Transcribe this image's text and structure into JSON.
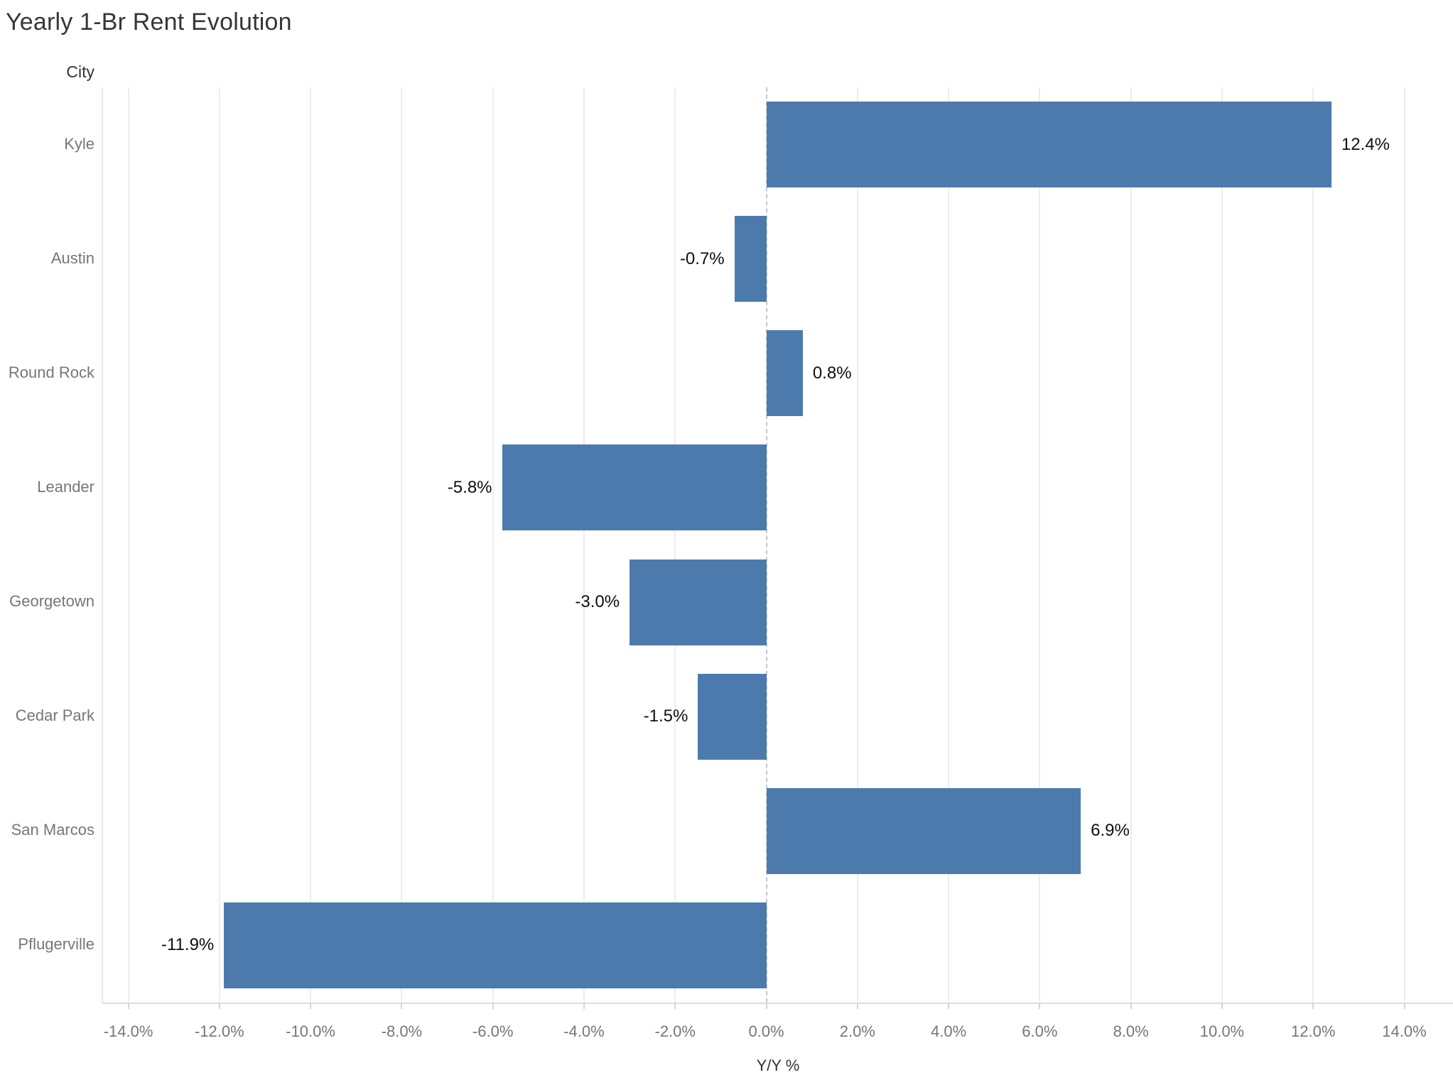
{
  "title": "Yearly 1-Br Rent Evolution",
  "row_header": "City",
  "colors": {
    "bar": "#4d7aac",
    "gridline": "#ededed",
    "zero_line": "#c6c6c6",
    "axis_line": "#dddddd",
    "tick_text": "#767676",
    "city_text": "#767676",
    "value_text": "#0f0f0f",
    "title_text": "#363636"
  },
  "chart_data": {
    "type": "bar",
    "orientation": "horizontal",
    "title": "Yearly 1-Br Rent Evolution",
    "xlabel": "Y/Y %",
    "ylabel": "City",
    "categories": [
      "Kyle",
      "Austin",
      "Round Rock",
      "Leander",
      "Georgetown",
      "Cedar Park",
      "San Marcos",
      "Pflugerville"
    ],
    "values": [
      12.4,
      -0.7,
      0.8,
      -5.8,
      -3.0,
      -1.5,
      6.9,
      -11.9
    ],
    "value_labels": [
      "12.4%",
      "-0.7%",
      "0.8%",
      "-5.8%",
      "-3.0%",
      "-1.5%",
      "6.9%",
      "-11.9%"
    ],
    "xlim": [
      -14.57,
      14.99
    ],
    "xticks": [
      -14,
      -12,
      -10,
      -8,
      -6,
      -4,
      -2,
      0,
      2,
      4,
      6,
      8,
      10,
      12,
      14
    ],
    "xtick_labels": [
      "-14.0%",
      "-12.0%",
      "-10.0%",
      "-8.0%",
      "-6.0%",
      "-4.0%",
      "-2.0%",
      "0.0%",
      "2.0%",
      "4.0%",
      "6.0%",
      "8.0%",
      "10.0%",
      "12.0%",
      "14.0%"
    ],
    "grid": "vertical",
    "zero_line_style": "dashed",
    "legend": "none"
  }
}
